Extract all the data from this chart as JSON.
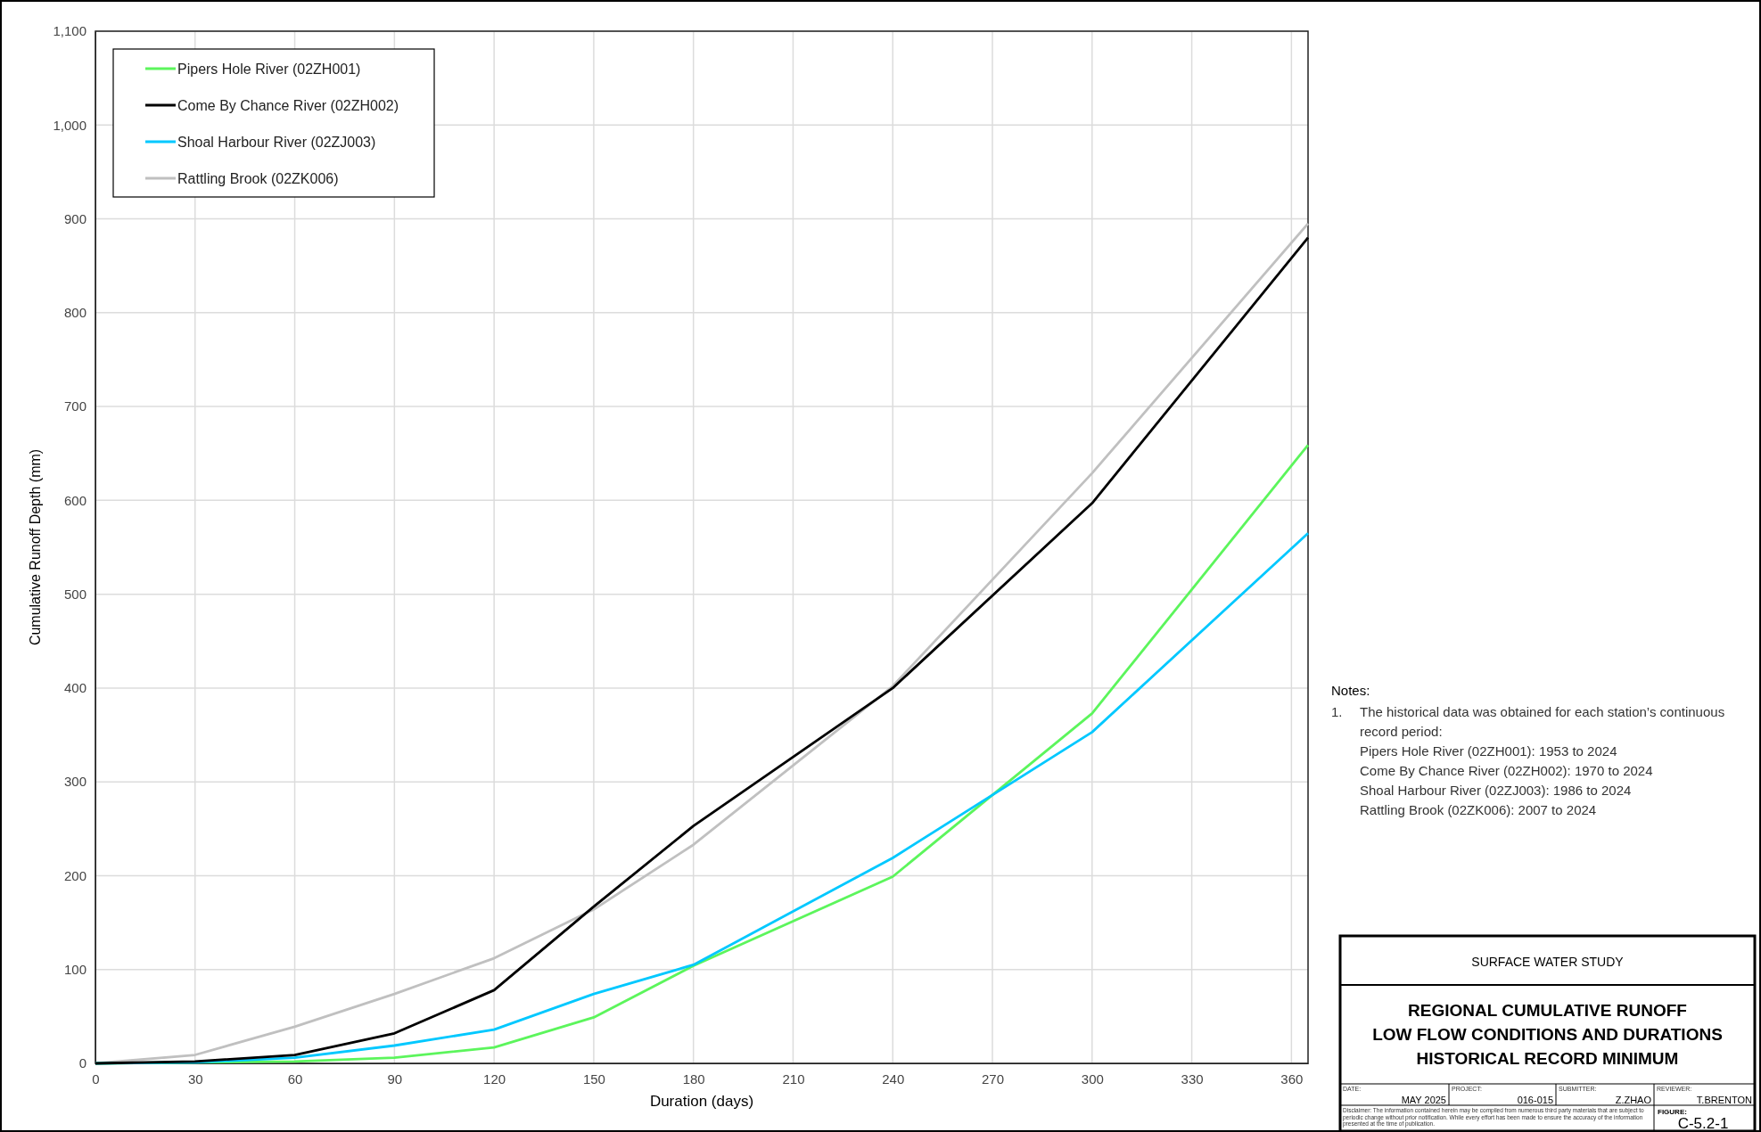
{
  "chart_data": {
    "type": "line",
    "title": "REGIONAL CUMULATIVE RUNOFF\nLOW FLOW CONDITIONS AND DURATIONS\nHISTORICAL RECORD MINIMUM",
    "subtitle": "SURFACE WATER STUDY",
    "xlabel": "Duration (days)",
    "ylabel": "Cumulative Runoff Depth (mm)",
    "x": [
      0,
      30,
      60,
      90,
      120,
      150,
      180,
      240,
      300,
      365
    ],
    "series": [
      {
        "name": "Pipers Hole River (02ZH001)",
        "color": "#5cf55c",
        "values": [
          0,
          1,
          2,
          6,
          17,
          49,
          104,
          199,
          373,
          659
        ]
      },
      {
        "name": "Come By Chance River (02ZH002)",
        "color": "#000000",
        "values": [
          0,
          2,
          9,
          32,
          78,
          167,
          253,
          400,
          597,
          880
        ]
      },
      {
        "name": "Shoal Harbour River (02ZJ003)",
        "color": "#00c8ff",
        "values": [
          0,
          1,
          6,
          19,
          36,
          74,
          105,
          219,
          353,
          565
        ]
      },
      {
        "name": "Rattling Brook (02ZK006)",
        "color": "#c0c0c0",
        "values": [
          0,
          9,
          39,
          74,
          112,
          164,
          233,
          402,
          629,
          895
        ]
      }
    ],
    "xlim": [
      0,
      365
    ],
    "xticks": [
      0,
      30,
      60,
      90,
      120,
      150,
      180,
      210,
      240,
      270,
      300,
      330,
      360
    ],
    "ylim": [
      0,
      1100
    ],
    "yticks": [
      0,
      100,
      200,
      300,
      400,
      500,
      600,
      700,
      800,
      900,
      {
        "value": 1000,
        "label": "1,000"
      },
      {
        "value": 1100,
        "label": "1,100"
      }
    ],
    "grid": true,
    "legend": "top left",
    "marker": "none",
    "line_style": "solid",
    "annotations": [
      "Notes:",
      "1.",
      "The historical data was obtained for each station’s continuous record period:",
      "Pipers Hole River (02ZH001): 1953 to 2024",
      "Come By Chance River (02ZH002): 1970 to 2024",
      "Shoal Harbour River (02ZJ003): 1986 to 2024",
      "Rattling Brook (02ZK006): 2007 to 2024",
      "DATE:",
      "MAY 2025",
      "PROJECT:",
      "016-015",
      "SUBMITTER:",
      "Z.ZHAO",
      "REVIEWER:",
      "T.BRENTON",
      "Disclaimer: The information contained herein may be compiled from numerous third party materials that are subject to periodic change without prior notification. While every effort has been made to ensure the accuracy of the information presented at the time of publication.",
      "FIGURE:",
      "C-5.2-1"
    ]
  }
}
